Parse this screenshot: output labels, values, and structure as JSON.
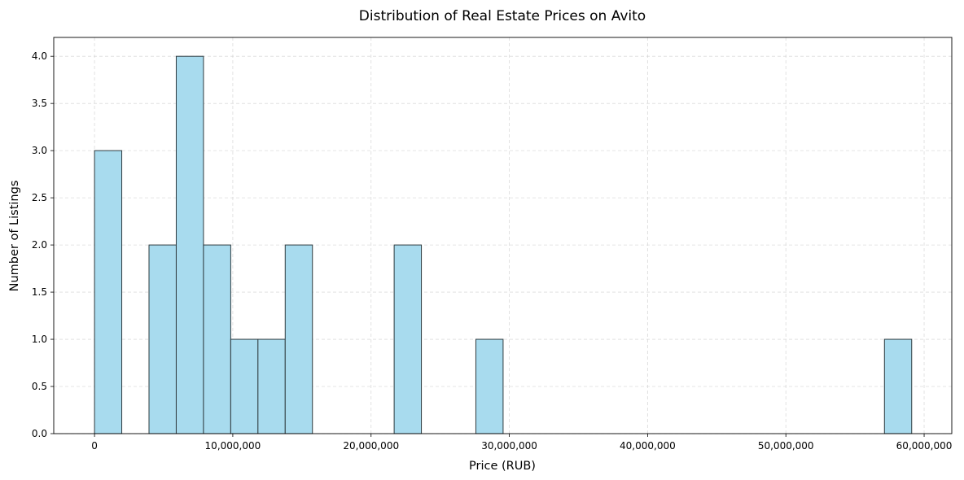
{
  "chart_data": {
    "type": "bar",
    "title": "Distribution of Real Estate Prices on Avito",
    "xlabel": "Price (RUB)",
    "ylabel": "Number of Listings",
    "xlim": [
      -2950000,
      62000000
    ],
    "ylim": [
      0,
      4.2
    ],
    "x_ticks": [
      0,
      10000000,
      20000000,
      30000000,
      40000000,
      50000000,
      60000000
    ],
    "x_tick_labels": [
      "0",
      "10,000,000",
      "20,000,000",
      "30,000,000",
      "40,000,000",
      "50,000,000",
      "60,000,000"
    ],
    "y_ticks": [
      0,
      0.5,
      1.0,
      1.5,
      2.0,
      2.5,
      3.0,
      3.5,
      4.0
    ],
    "y_tick_labels": [
      "0.0",
      "0.5",
      "1.0",
      "1.5",
      "2.0",
      "2.5",
      "3.0",
      "3.5",
      "4.0"
    ],
    "grid": true,
    "bar_color": "#a8dbee",
    "bar_edge_color": "#2f3b3f",
    "bins": [
      {
        "start": 0,
        "end": 1970000,
        "count": 3
      },
      {
        "start": 3940000,
        "end": 5910000,
        "count": 2
      },
      {
        "start": 5910000,
        "end": 7880000,
        "count": 4
      },
      {
        "start": 7880000,
        "end": 9850000,
        "count": 2
      },
      {
        "start": 9850000,
        "end": 11820000,
        "count": 1
      },
      {
        "start": 11820000,
        "end": 13790000,
        "count": 1
      },
      {
        "start": 13790000,
        "end": 15760000,
        "count": 2
      },
      {
        "start": 21670000,
        "end": 23640000,
        "count": 2
      },
      {
        "start": 27580000,
        "end": 29550000,
        "count": 1
      },
      {
        "start": 57130000,
        "end": 59100000,
        "count": 1
      }
    ]
  }
}
